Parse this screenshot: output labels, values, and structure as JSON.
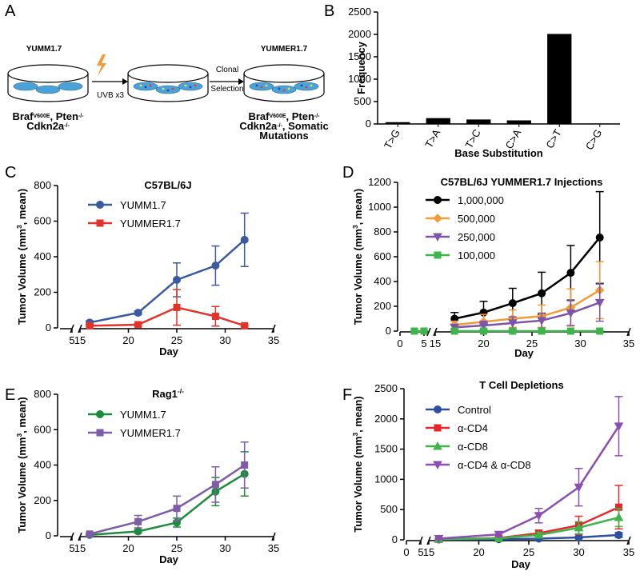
{
  "diagram": {
    "label": "A",
    "left_name": "YUMM1.7",
    "right_name": "YUMMER1.7",
    "step1": "UVB x3",
    "step2": [
      "Clonal",
      "Selection"
    ],
    "genotype_left": [
      [
        {
          "text": "Braf"
        },
        {
          "sup": "V600E"
        },
        {
          "text": ", Pten"
        },
        {
          "sup": "-/-"
        }
      ],
      [
        {
          "text": "Cdkn2a"
        },
        {
          "sup": "-/-"
        }
      ]
    ],
    "genotype_right": [
      [
        {
          "text": "Braf"
        },
        {
          "sup": "V600E"
        },
        {
          "text": ", Pten"
        },
        {
          "sup": "-/-"
        }
      ],
      [
        {
          "text": "Cdkn2a"
        },
        {
          "sup": "-/-"
        },
        {
          "text": ", Somatic"
        }
      ],
      [
        {
          "text": "Mutations"
        }
      ]
    ]
  },
  "chart_data": [
    {
      "label": "B",
      "type": "bar",
      "x_label": "Base Substitution",
      "y_label": [
        "Frequency"
      ],
      "categories": [
        "T>G",
        "T>A",
        "T>C",
        "C>A",
        "C>T",
        "C>G"
      ],
      "values": [
        40,
        130,
        100,
        80,
        2010,
        10
      ],
      "color": "#000000",
      "ylim": [
        0,
        2500
      ],
      "yticks": [
        0,
        500,
        1000,
        1500,
        2000,
        2500
      ]
    },
    {
      "label": "C",
      "type": "line",
      "title": [
        "C57BL/6J"
      ],
      "x_label": "Day",
      "y_label": [
        "Tumor Volume (mm",
        "3",
        ", mean)"
      ],
      "x_segments": [
        {
          "xlim": [
            0,
            5
          ],
          "xticks": [
            5
          ]
        },
        {
          "xlim": [
            15,
            35
          ],
          "xticks": [
            15,
            20,
            25,
            30,
            35
          ]
        }
      ],
      "ylim": [
        0,
        800
      ],
      "yticks": [
        0,
        200,
        400,
        600,
        800
      ],
      "legend": "upper left",
      "series": [
        {
          "name": "YUMM1.7",
          "color": "#3a5ba0",
          "marker": "circle",
          "x": [
            16,
            21,
            25,
            29,
            32
          ],
          "values": [
            30,
            85,
            270,
            350,
            495
          ],
          "errors": [
            10,
            10,
            95,
            110,
            150
          ]
        },
        {
          "name": "YUMMER1.7",
          "color": "#e2332a",
          "marker": "square",
          "x": [
            16,
            21,
            25,
            29,
            32
          ],
          "values": [
            12,
            18,
            115,
            65,
            12
          ],
          "errors": [
            5,
            5,
            100,
            55,
            5
          ]
        }
      ]
    },
    {
      "label": "D",
      "type": "line",
      "title": [
        "C57BL/6J YUMMER1.7 Injections"
      ],
      "x_label": "Day",
      "y_label": [
        "Tumor Volume (mm",
        "3",
        ", mean)"
      ],
      "x_segments": [
        {
          "xlim": [
            0,
            6
          ],
          "xticks": [
            0,
            5
          ]
        },
        {
          "xlim": [
            15,
            35
          ],
          "xticks": [
            15,
            20,
            25,
            30,
            35
          ]
        }
      ],
      "ylim": [
        0,
        1200
      ],
      "yticks": [
        0,
        200,
        400,
        600,
        800,
        1000,
        1200
      ],
      "legend": "upper left",
      "series": [
        {
          "name": "1,000,000",
          "color": "#000000",
          "marker": "circle",
          "x": [
            17,
            20,
            23,
            26,
            29,
            32
          ],
          "values": [
            100,
            150,
            225,
            305,
            470,
            755
          ],
          "errors": [
            50,
            90,
            120,
            170,
            220,
            370
          ]
        },
        {
          "name": "500,000",
          "color": "#f29b38",
          "marker": "diamond",
          "x": [
            17,
            20,
            23,
            26,
            29,
            32
          ],
          "values": [
            50,
            75,
            100,
            120,
            190,
            330
          ],
          "errors": [
            30,
            60,
            70,
            90,
            150,
            230
          ]
        },
        {
          "name": "250,000",
          "color": "#7d55a8",
          "marker": "triangle",
          "x": [
            17,
            20,
            23,
            26,
            29,
            32
          ],
          "values": [
            30,
            45,
            65,
            85,
            145,
            230
          ],
          "errors": [
            20,
            35,
            50,
            60,
            100,
            150
          ]
        },
        {
          "name": "100,000",
          "color": "#3cb54a",
          "marker": "square",
          "x": [
            3,
            5,
            17,
            20,
            23,
            26,
            29,
            32
          ],
          "values": [
            0,
            0,
            0,
            0,
            0,
            0,
            0,
            0
          ],
          "errors": [
            0,
            0,
            0,
            0,
            0,
            0,
            0,
            0
          ]
        }
      ]
    },
    {
      "label": "E",
      "type": "line",
      "title": [
        "Rag1",
        "-/-"
      ],
      "x_label": "Day",
      "y_label": [
        "Tumor Volume (mm",
        "3",
        ", mean)"
      ],
      "x_segments": [
        {
          "xlim": [
            0,
            5
          ],
          "xticks": [
            5
          ]
        },
        {
          "xlim": [
            15,
            35
          ],
          "xticks": [
            15,
            20,
            25,
            30,
            35
          ]
        }
      ],
      "ylim": [
        0,
        800
      ],
      "yticks": [
        0,
        200,
        400,
        600,
        800
      ],
      "legend": "upper left",
      "series": [
        {
          "name": "YUMM1.7",
          "color": "#1e8a3c",
          "marker": "circle",
          "x": [
            16,
            21,
            25,
            29,
            32
          ],
          "values": [
            5,
            25,
            75,
            250,
            350
          ],
          "errors": [
            5,
            10,
            25,
            80,
            125
          ]
        },
        {
          "name": "YUMMER1.7",
          "color": "#7d5ca8",
          "marker": "square",
          "x": [
            16,
            21,
            25,
            29,
            32
          ],
          "values": [
            10,
            80,
            155,
            290,
            400
          ],
          "errors": [
            5,
            35,
            70,
            100,
            130
          ]
        }
      ]
    },
    {
      "label": "F",
      "type": "line",
      "title": [
        "T Cell Depletions"
      ],
      "x_label": "Day",
      "y_label": [
        "Tumor Volume (mm",
        "3",
        ", mean)"
      ],
      "x_segments": [
        {
          "xlim": [
            0,
            5
          ],
          "xticks": [
            0,
            5
          ]
        },
        {
          "xlim": [
            15,
            35
          ],
          "xticks": [
            15,
            20,
            25,
            30,
            35
          ]
        }
      ],
      "ylim": [
        0,
        2500
      ],
      "yticks": [
        0,
        500,
        1000,
        1500,
        2000,
        2500
      ],
      "legend": "upper left",
      "series": [
        {
          "name": "Control",
          "color": "#2d4fa2",
          "marker": "circle",
          "x": [
            16,
            22,
            26,
            30,
            34
          ],
          "values": [
            5,
            10,
            20,
            40,
            80
          ],
          "errors": [
            2,
            5,
            10,
            20,
            40
          ]
        },
        {
          "name": "α-CD4",
          "color": "#e8262a",
          "marker": "square",
          "x": [
            16,
            22,
            26,
            30,
            34
          ],
          "values": [
            10,
            30,
            110,
            240,
            540
          ],
          "errors": [
            5,
            15,
            50,
            150,
            360
          ]
        },
        {
          "name": "α-CD8",
          "color": "#3db54a",
          "marker": "triangle-up",
          "x": [
            16,
            22,
            26,
            30,
            34
          ],
          "values": [
            10,
            25,
            80,
            200,
            370
          ],
          "errors": [
            5,
            10,
            40,
            100,
            150
          ]
        },
        {
          "name": "α-CD4 & α-CD8",
          "color": "#8a4fb0",
          "marker": "triangle",
          "x": [
            16,
            22,
            26,
            30,
            34
          ],
          "values": [
            20,
            90,
            400,
            870,
            1880
          ],
          "errors": [
            10,
            40,
            120,
            310,
            490
          ]
        }
      ]
    }
  ]
}
